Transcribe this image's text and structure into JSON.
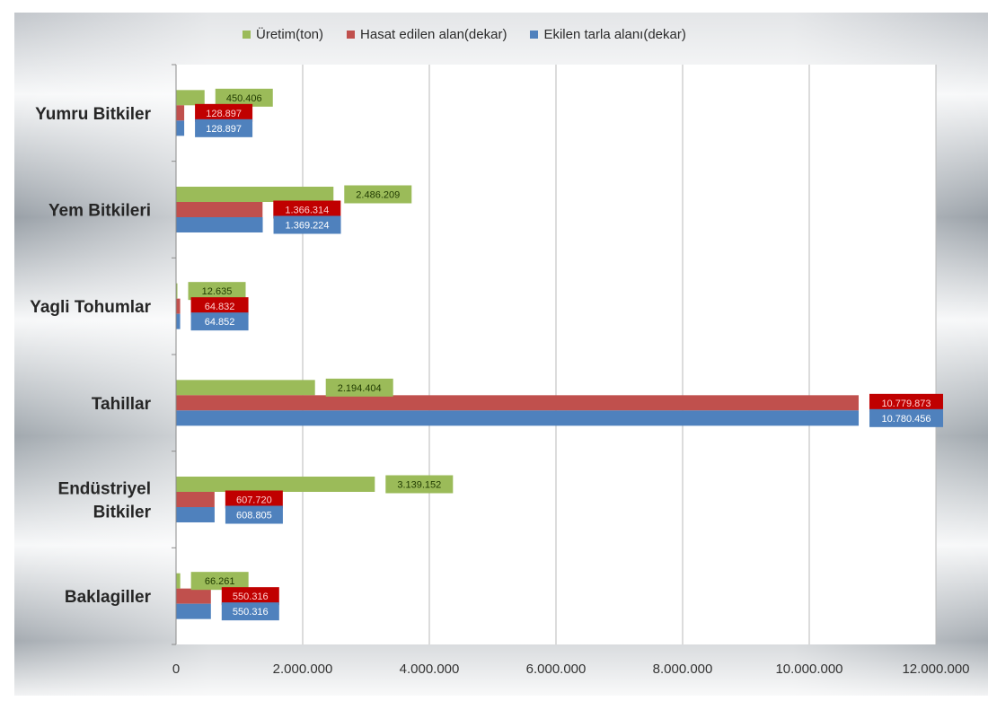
{
  "chart_data": {
    "type": "bar",
    "orientation": "horizontal",
    "categories": [
      "Yumru Bitkiler",
      "Yem Bitkileri",
      "Yagli Tohumlar",
      "Tahillar",
      "Endüstriyel Bitkiler",
      "Baklagiller"
    ],
    "category_lines": [
      [
        "Yumru Bitkiler"
      ],
      [
        "Yem Bitkileri"
      ],
      [
        "Yagli Tohumlar"
      ],
      [
        "Tahillar"
      ],
      [
        "Endüstriyel",
        "Bitkiler"
      ],
      [
        "Baklagiller"
      ]
    ],
    "series": [
      {
        "name": "Üretim(ton)",
        "color": "#9bbb59",
        "label_bg": "#9bbb59",
        "label_color": "#1f3a00",
        "values": [
          450406,
          2486209,
          12635,
          2194404,
          3139152,
          66261
        ],
        "labels": [
          "450.406",
          "2.486.209",
          "12.635",
          "2.194.404",
          "3.139.152",
          "66.261"
        ]
      },
      {
        "name": "Hasat edilen alan(dekar)",
        "color": "#c0504d",
        "label_bg": "#c00000",
        "label_color": "#ffd0d0",
        "values": [
          128897,
          1366314,
          64832,
          10779873,
          607720,
          550316
        ],
        "labels": [
          "128.897",
          "1.366.314",
          "64.832",
          "10.779.873",
          "607.720",
          "550.316"
        ]
      },
      {
        "name": "Ekilen tarla alanı(dekar)",
        "color": "#4f81bd",
        "label_bg": "#4f81bd",
        "label_color": "#ffffff",
        "values": [
          128897,
          1369224,
          64852,
          10780456,
          608805,
          550316
        ],
        "labels": [
          "128.897",
          "1.369.224",
          "64.852",
          "10.780.456",
          "608.805",
          "550.316"
        ]
      }
    ],
    "legend_order": [
      0,
      1,
      2
    ],
    "x_ticks": [
      0,
      2000000,
      4000000,
      6000000,
      8000000,
      10000000,
      12000000
    ],
    "x_tick_labels": [
      "0",
      "2.000.000",
      "4.000.000",
      "6.000.000",
      "8.000.000",
      "10.000.000",
      "12.000.000"
    ],
    "xlim": [
      0,
      12000000
    ],
    "grid": true,
    "legend_position": "top"
  }
}
